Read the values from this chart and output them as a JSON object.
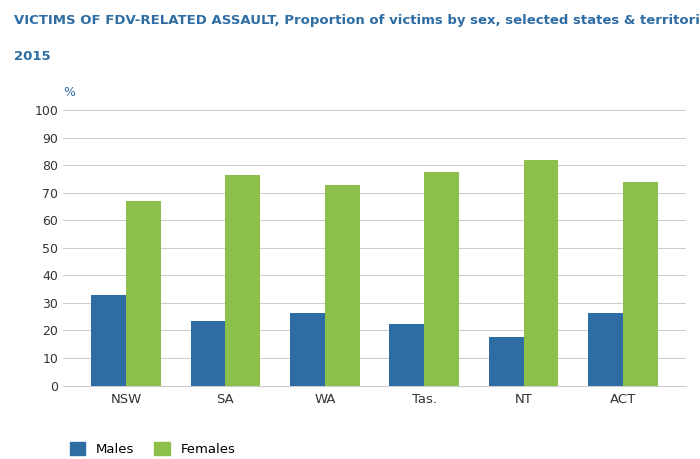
{
  "title_line1": "VICTIMS OF FDV-RELATED ASSAULT, Proportion of victims by sex, selected states & territories",
  "title_line2": "2015",
  "ylabel_annotation": "%",
  "categories": [
    "NSW",
    "SA",
    "WA",
    "Tas.",
    "NT",
    "ACT"
  ],
  "males": [
    33,
    23.5,
    26.5,
    22.5,
    17.5,
    26.5
  ],
  "females": [
    67,
    76.5,
    73,
    77.5,
    82,
    74
  ],
  "male_color": "#2E6DA4",
  "female_color": "#8DC04B",
  "ylim": [
    0,
    100
  ],
  "yticks": [
    0,
    10,
    20,
    30,
    40,
    50,
    60,
    70,
    80,
    90,
    100
  ],
  "background_color": "#ffffff",
  "grid_color": "#cccccc",
  "title_color": "#2E6DA4",
  "title_fontsize": 9.5,
  "legend_labels": [
    "Males",
    "Females"
  ],
  "bar_width": 0.35
}
